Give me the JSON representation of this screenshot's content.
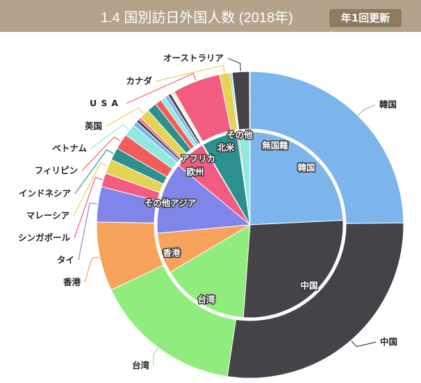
{
  "header": {
    "title": "1.4 国別訪日外国人数 (2018年)",
    "badge": "年1回更新"
  },
  "chart_data": {
    "type": "pie",
    "subtype": "two-ring donut (inner: region, outer: country)",
    "unit": "million visitors (approx.)",
    "inner": [
      {
        "name": "韓国",
        "value": 7.54,
        "color": "#7cb5ec"
      },
      {
        "name": "中国",
        "value": 8.38,
        "color": "#434348"
      },
      {
        "name": "台湾",
        "value": 4.76,
        "color": "#90ed7d"
      },
      {
        "name": "香港",
        "value": 2.21,
        "color": "#f7a35c"
      },
      {
        "name": "その他アジア",
        "value": 3.88,
        "color": "#8085e9"
      },
      {
        "name": "欧州",
        "value": 1.68,
        "color": "#f15c80"
      },
      {
        "name": "アフリカ",
        "value": 0.04,
        "color": "#e4d354"
      },
      {
        "name": "北米",
        "value": 1.93,
        "color": "#2b908f"
      },
      {
        "name": "",
        "value": 0.07,
        "color": "#f45b5b"
      },
      {
        "name": "その他",
        "value": 0.62,
        "color": "#91e8e1"
      },
      {
        "name": "無国籍",
        "value": 0.01,
        "color": "#7cb5ec"
      }
    ],
    "outer": [
      {
        "name": "韓国",
        "value": 7.54,
        "color": "#7cb5ec"
      },
      {
        "name": "中国",
        "value": 8.38,
        "color": "#434348"
      },
      {
        "name": "台湾",
        "value": 4.76,
        "color": "#90ed7d"
      },
      {
        "name": "香港",
        "value": 2.21,
        "color": "#f7a35c"
      },
      {
        "name": "タイ",
        "value": 1.13,
        "color": "#8085e9"
      },
      {
        "name": "シンガポール",
        "value": 0.44,
        "color": "#f15c80"
      },
      {
        "name": "マレーシア",
        "value": 0.47,
        "color": "#e4d354"
      },
      {
        "name": "インドネシア",
        "value": 0.4,
        "color": "#2b908f"
      },
      {
        "name": "フィリピン",
        "value": 0.5,
        "color": "#f45b5b"
      },
      {
        "name": "ベトナム",
        "value": 0.39,
        "color": "#91e8e1"
      },
      {
        "name": "",
        "value": 0.15,
        "color": "#7cb5ec"
      },
      {
        "name": "",
        "value": 0.1,
        "color": "#434348"
      },
      {
        "name": "",
        "value": 0.08,
        "color": "#f15c80"
      },
      {
        "name": "英国",
        "value": 0.33,
        "color": "#e4d354"
      },
      {
        "name": "",
        "value": 0.31,
        "color": "#2b908f"
      },
      {
        "name": "",
        "value": 0.21,
        "color": "#f45b5b"
      },
      {
        "name": "",
        "value": 0.15,
        "color": "#91e8e1"
      },
      {
        "name": "",
        "value": 0.12,
        "color": "#7cb5ec"
      },
      {
        "name": "",
        "value": 0.1,
        "color": "#434348"
      },
      {
        "name": "",
        "value": 0.03,
        "color": "#90ed7d"
      },
      {
        "name": "",
        "value": 0.03,
        "color": "#f7a35c"
      },
      {
        "name": "",
        "value": 0.03,
        "color": "#8085e9"
      },
      {
        "name": "",
        "value": 0.04,
        "color": "#e4d354"
      },
      {
        "name": "USA",
        "value": 1.53,
        "color": "#f15c80"
      },
      {
        "name": "カナダ",
        "value": 0.33,
        "color": "#e4d354"
      },
      {
        "name": "",
        "value": 0.04,
        "color": "#2b908f"
      },
      {
        "name": "",
        "value": 0.03,
        "color": "#7cb5ec"
      },
      {
        "name": "オーストラリア",
        "value": 0.55,
        "color": "#434348"
      },
      {
        "name": "",
        "value": 0.02,
        "color": "#90ed7d"
      }
    ]
  }
}
